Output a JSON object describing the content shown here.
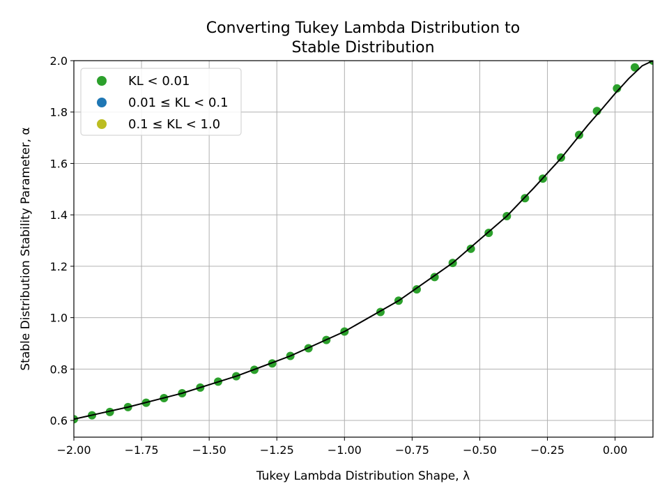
{
  "chart_data": {
    "type": "scatter",
    "title_lines": [
      "Converting Tukey Lambda Distribution to",
      "Stable Distribution"
    ],
    "xlabel": "Tukey Lambda Distribution Shape, λ",
    "ylabel": "Stable Distribution Stability Parameter, α",
    "xlim": [
      -2.0,
      0.14
    ],
    "ylim": [
      0.535,
      2.0
    ],
    "xticks": [
      -2.0,
      -1.75,
      -1.5,
      -1.25,
      -1.0,
      -0.75,
      -0.5,
      -0.25,
      0.0
    ],
    "xtick_labels": [
      "−2.00",
      "−1.75",
      "−1.50",
      "−1.25",
      "−1.00",
      "−0.75",
      "−0.50",
      "−0.25",
      "0.00"
    ],
    "yticks": [
      0.6,
      0.8,
      1.0,
      1.2,
      1.4,
      1.6,
      1.8,
      2.0
    ],
    "ytick_labels": [
      "0.6",
      "0.8",
      "1.0",
      "1.2",
      "1.4",
      "1.6",
      "1.8",
      "2.0"
    ],
    "grid": true,
    "legend_position": "top-left",
    "legend": [
      {
        "label": "KL < 0.01",
        "color": "#2ca02c"
      },
      {
        "label": "0.01 ≤ KL < 0.1",
        "color": "#1f77b4"
      },
      {
        "label": "0.1 ≤ KL < 1.0",
        "color": "#bcbd22"
      }
    ],
    "series": [
      {
        "name": "KL < 0.01",
        "color": "#2ca02c",
        "x": [
          -2.0,
          -1.933,
          -1.867,
          -1.8,
          -1.733,
          -1.667,
          -1.6,
          -1.533,
          -1.467,
          -1.4,
          -1.333,
          -1.267,
          -1.2,
          -1.133,
          -1.067,
          -1.0,
          -0.867,
          -0.8,
          -0.733,
          -0.667,
          -0.6,
          -0.533,
          -0.467,
          -0.4,
          -0.333,
          -0.267,
          -0.2,
          -0.133,
          -0.067,
          0.007,
          0.073,
          0.14
        ],
        "y": [
          0.605,
          0.62,
          0.633,
          0.652,
          0.669,
          0.687,
          0.706,
          0.728,
          0.751,
          0.772,
          0.797,
          0.822,
          0.851,
          0.881,
          0.913,
          0.946,
          1.022,
          1.066,
          1.11,
          1.158,
          1.213,
          1.268,
          1.33,
          1.395,
          1.465,
          1.541,
          1.623,
          1.711,
          1.804,
          1.892,
          1.974,
          2.0
        ]
      }
    ],
    "fit_line": {
      "color": "#000000",
      "x": [
        -2.0,
        -1.8,
        -1.6,
        -1.4,
        -1.2,
        -1.0,
        -0.8,
        -0.6,
        -0.4,
        -0.3,
        -0.2,
        -0.1,
        -0.05,
        0.0,
        0.05,
        0.1,
        0.14
      ],
      "y": [
        0.605,
        0.652,
        0.706,
        0.772,
        0.851,
        0.946,
        1.066,
        1.213,
        1.395,
        1.505,
        1.62,
        1.75,
        1.81,
        1.872,
        1.93,
        1.98,
        2.0
      ]
    }
  }
}
